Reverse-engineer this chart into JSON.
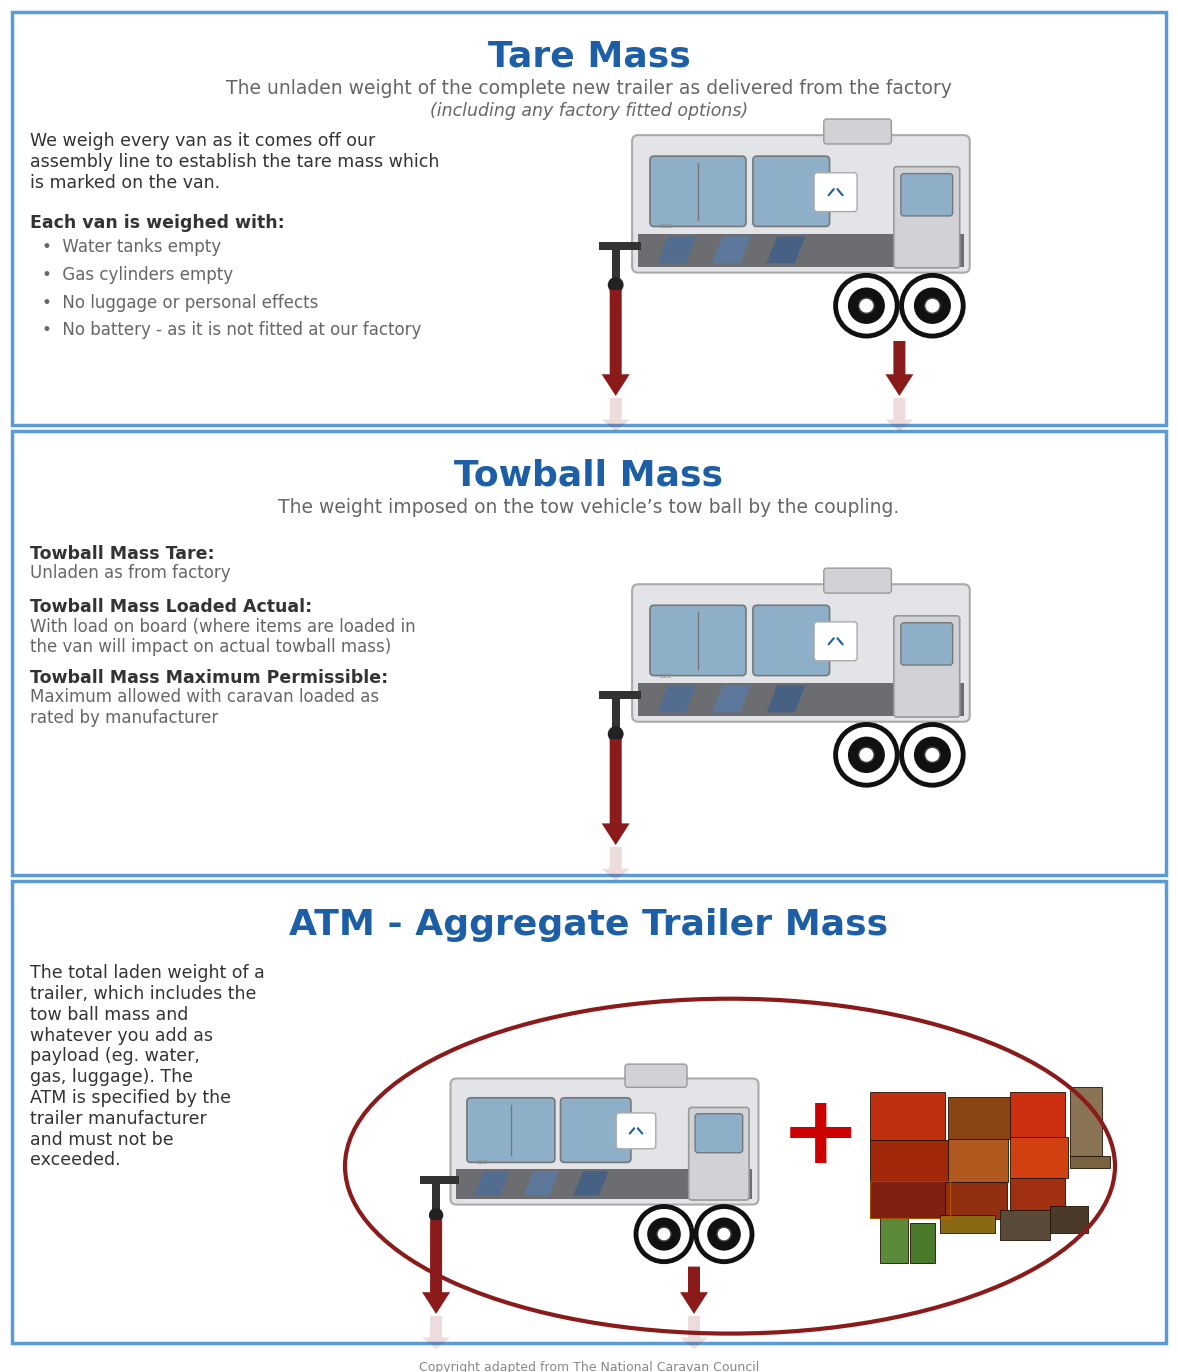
{
  "title_tare": "Tare Mass",
  "subtitle_tare": "The unladen weight of the complete new trailer as delivered from the factory",
  "subtitle_tare2": "(including any factory fitted options)",
  "body_tare_normal": "We weigh every van as it comes off our\nassembly line to establish the tare mass which\nis marked on the van.",
  "bold_tare": "Each van is weighed with:",
  "bullets_tare": [
    "Water tanks empty",
    "Gas cylinders empty",
    "No luggage or personal effects",
    "No battery - as it is not fitted at our factory"
  ],
  "title_towball": "Towball Mass",
  "subtitle_towball": "The weight imposed on the tow vehicle’s tow ball by the coupling.",
  "items_towball": [
    {
      "bold": "Towball Mass Tare:",
      "text": "Unladen as from factory"
    },
    {
      "bold": "Towball Mass Loaded Actual:",
      "text": "With load on board (where items are loaded in\nthe van will impact on actual towball mass)"
    },
    {
      "bold": "Towball Mass Maximum Permissible:",
      "text": "Maximum allowed with caravan loaded as\nrated by manufacturer"
    }
  ],
  "title_atm": "ATM - Aggregate Trailer Mass",
  "body_atm": "The total laden weight of a\ntrailer, which includes the\ntow ball mass and\nwhatever you add as\npayload (eg. water,\ngas, luggage). The\nATM is specified by the\ntrailer manufacturer\nand must not be\nexceeded.",
  "title_color": "#1c5fa6",
  "subtitle_color": "#666666",
  "body_color": "#333333",
  "border_color": "#5b9bd5",
  "background_color": "#ffffff",
  "arrow_color": "#8b1a1a",
  "atm_oval_color": "#8b1a1a",
  "plus_color": "#cc0000",
  "footer_text": "Copyright adapted from The National Caravan Council"
}
